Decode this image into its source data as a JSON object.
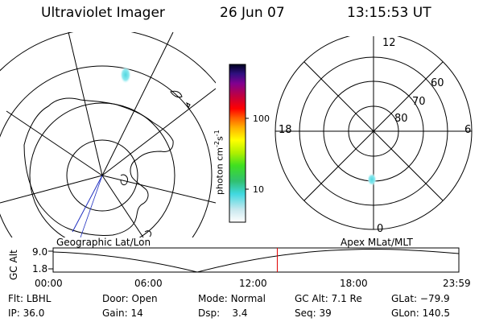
{
  "header": {
    "instrument": "Ultraviolet Imager",
    "date": "26 Jun 07",
    "time": "13:15:53 UT"
  },
  "colorbar": {
    "unit_text": "photon cm",
    "unit_exp1": "-2",
    "unit_mid": "s",
    "unit_exp2": "-1",
    "ticks": [
      "100",
      "10"
    ]
  },
  "polar_plot": {
    "mlt_labels": {
      "top": "12",
      "left": "18",
      "right": "6",
      "bottom": "0"
    },
    "lat_labels": [
      "60",
      "70",
      "80"
    ]
  },
  "timeline": {
    "ylabel": "GC Alt",
    "yticks": [
      "9.0",
      "1.8"
    ],
    "left_label": "Geographic Lat/Lon",
    "right_label": "Apex MLat/MLT",
    "xticks": [
      "00:00",
      "06:00",
      "12:00",
      "18:00",
      "23:59"
    ],
    "marker_time_hours": 13.26,
    "marker_color": "#e00000"
  },
  "status": {
    "row1": [
      {
        "label": "Flt:",
        "value": "LBHL"
      },
      {
        "label": "Door:",
        "value": "Open"
      },
      {
        "label": "Mode:",
        "value": "Normal"
      },
      {
        "label": "GC Alt:",
        "value": "7.1 Re"
      },
      {
        "label": "GLat:",
        "value": "−79.9"
      }
    ],
    "row2": [
      {
        "label": "IP:",
        "value": "36.0"
      },
      {
        "label": "Gain:",
        "value": "14"
      },
      {
        "label": "Dsp:",
        "value": "3.4"
      },
      {
        "label": "Seq:",
        "value": "39"
      },
      {
        "label": "GLon:",
        "value": "140.5"
      }
    ]
  }
}
